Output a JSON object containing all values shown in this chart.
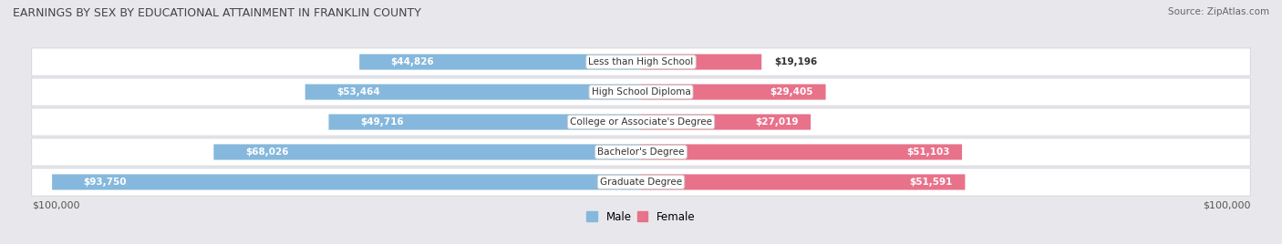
{
  "title": "EARNINGS BY SEX BY EDUCATIONAL ATTAINMENT IN FRANKLIN COUNTY",
  "source": "Source: ZipAtlas.com",
  "categories": [
    "Less than High School",
    "High School Diploma",
    "College or Associate's Degree",
    "Bachelor's Degree",
    "Graduate Degree"
  ],
  "male_values": [
    44826,
    53464,
    49716,
    68026,
    93750
  ],
  "female_values": [
    19196,
    29405,
    27019,
    51103,
    51591
  ],
  "male_color": "#85b8dc",
  "female_color": "#e8728a",
  "male_label": "Male",
  "female_label": "Female",
  "max_val": 100000,
  "bg_color": "#e8e8ec",
  "row_bg_color": "#f2f2f6",
  "title_color": "#444444",
  "text_color": "#333333",
  "axis_label_left": "$100,000",
  "axis_label_right": "$100,000"
}
